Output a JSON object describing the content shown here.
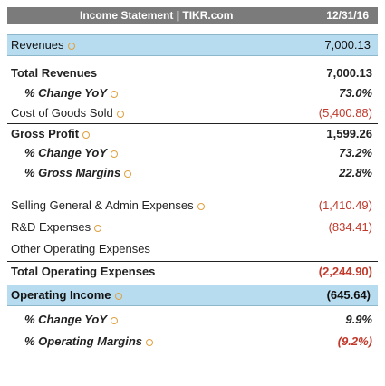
{
  "header": {
    "title": "Income Statement | TIKR.com",
    "date": "12/31/16"
  },
  "revenues_band": {
    "label": "Revenues",
    "value": "7,000.13"
  },
  "rows": [
    {
      "label": "Total Revenues",
      "value": "7,000.13"
    },
    {
      "label": "% Change YoY",
      "value": "73.0%"
    },
    {
      "label": "Cost of Goods Sold",
      "value": "(5,400.88)"
    },
    {
      "label": "Gross Profit",
      "value": "1,599.26"
    },
    {
      "label": "% Change YoY",
      "value": "73.2%"
    },
    {
      "label": "% Gross Margins",
      "value": "22.8%"
    },
    {
      "label": "Selling General & Admin Expenses",
      "value": "(1,410.49)"
    },
    {
      "label": "R&D Expenses",
      "value": "(834.41)"
    },
    {
      "label": "Other Operating Expenses",
      "value": ""
    },
    {
      "label": "Total Operating Expenses",
      "value": "(2,244.90)"
    },
    {
      "label": "% Change YoY",
      "value": "9.9%"
    },
    {
      "label": "% Operating Margins",
      "value": "(9.2%)"
    }
  ],
  "operating_band": {
    "label": "Operating Income",
    "value": "(645.64)"
  },
  "colors": {
    "band": "#b8dcef",
    "header": "#7b7b7b",
    "negative": "#c0392b"
  }
}
